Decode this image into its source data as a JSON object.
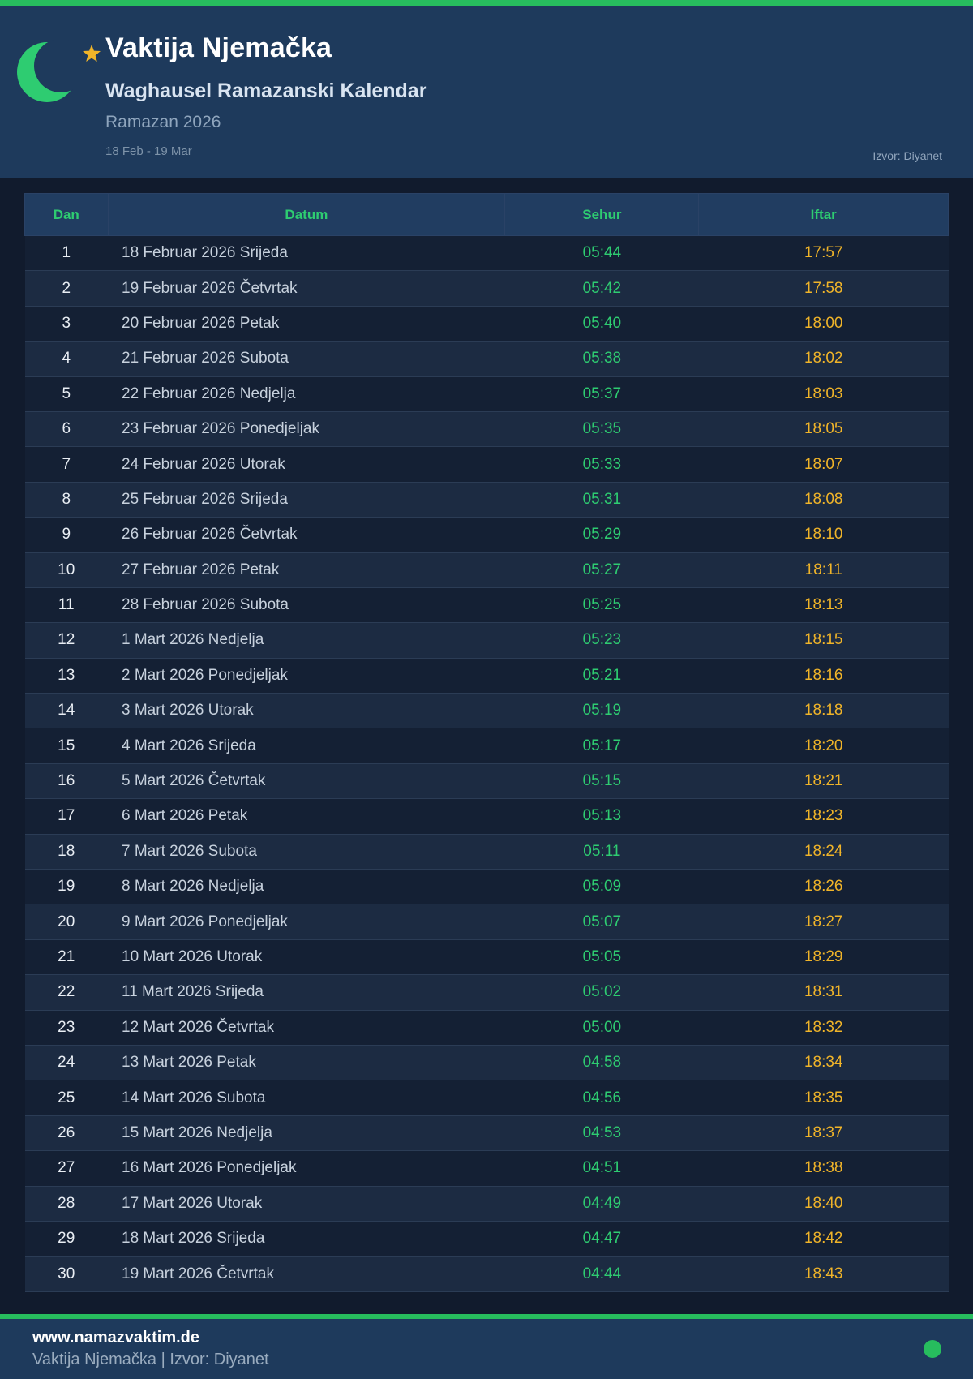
{
  "header": {
    "title": "Vaktija Njemačka",
    "subtitle": "Waghausel Ramazanski Kalendar",
    "period": "Ramazan 2026",
    "date_range": "18 Feb - 19 Mar",
    "source": "Izvor: Diyanet"
  },
  "table": {
    "columns": [
      "Dan",
      "Datum",
      "Sehur",
      "Iftar"
    ],
    "rows": [
      {
        "dan": "1",
        "datum": "18 Februar 2026 Srijeda",
        "sehur": "05:44",
        "iftar": "17:57"
      },
      {
        "dan": "2",
        "datum": "19 Februar 2026 Četvrtak",
        "sehur": "05:42",
        "iftar": "17:58"
      },
      {
        "dan": "3",
        "datum": "20 Februar 2026 Petak",
        "sehur": "05:40",
        "iftar": "18:00"
      },
      {
        "dan": "4",
        "datum": "21 Februar 2026 Subota",
        "sehur": "05:38",
        "iftar": "18:02"
      },
      {
        "dan": "5",
        "datum": "22 Februar 2026 Nedjelja",
        "sehur": "05:37",
        "iftar": "18:03"
      },
      {
        "dan": "6",
        "datum": "23 Februar 2026 Ponedjeljak",
        "sehur": "05:35",
        "iftar": "18:05"
      },
      {
        "dan": "7",
        "datum": "24 Februar 2026 Utorak",
        "sehur": "05:33",
        "iftar": "18:07"
      },
      {
        "dan": "8",
        "datum": "25 Februar 2026 Srijeda",
        "sehur": "05:31",
        "iftar": "18:08"
      },
      {
        "dan": "9",
        "datum": "26 Februar 2026 Četvrtak",
        "sehur": "05:29",
        "iftar": "18:10"
      },
      {
        "dan": "10",
        "datum": "27 Februar 2026 Petak",
        "sehur": "05:27",
        "iftar": "18:11"
      },
      {
        "dan": "11",
        "datum": "28 Februar 2026 Subota",
        "sehur": "05:25",
        "iftar": "18:13"
      },
      {
        "dan": "12",
        "datum": "1 Mart 2026 Nedjelja",
        "sehur": "05:23",
        "iftar": "18:15"
      },
      {
        "dan": "13",
        "datum": "2 Mart 2026 Ponedjeljak",
        "sehur": "05:21",
        "iftar": "18:16"
      },
      {
        "dan": "14",
        "datum": "3 Mart 2026 Utorak",
        "sehur": "05:19",
        "iftar": "18:18"
      },
      {
        "dan": "15",
        "datum": "4 Mart 2026 Srijeda",
        "sehur": "05:17",
        "iftar": "18:20"
      },
      {
        "dan": "16",
        "datum": "5 Mart 2026 Četvrtak",
        "sehur": "05:15",
        "iftar": "18:21"
      },
      {
        "dan": "17",
        "datum": "6 Mart 2026 Petak",
        "sehur": "05:13",
        "iftar": "18:23"
      },
      {
        "dan": "18",
        "datum": "7 Mart 2026 Subota",
        "sehur": "05:11",
        "iftar": "18:24"
      },
      {
        "dan": "19",
        "datum": "8 Mart 2026 Nedjelja",
        "sehur": "05:09",
        "iftar": "18:26"
      },
      {
        "dan": "20",
        "datum": "9 Mart 2026 Ponedjeljak",
        "sehur": "05:07",
        "iftar": "18:27"
      },
      {
        "dan": "21",
        "datum": "10 Mart 2026 Utorak",
        "sehur": "05:05",
        "iftar": "18:29"
      },
      {
        "dan": "22",
        "datum": "11 Mart 2026 Srijeda",
        "sehur": "05:02",
        "iftar": "18:31"
      },
      {
        "dan": "23",
        "datum": "12 Mart 2026 Četvrtak",
        "sehur": "05:00",
        "iftar": "18:32"
      },
      {
        "dan": "24",
        "datum": "13 Mart 2026 Petak",
        "sehur": "04:58",
        "iftar": "18:34"
      },
      {
        "dan": "25",
        "datum": "14 Mart 2026 Subota",
        "sehur": "04:56",
        "iftar": "18:35"
      },
      {
        "dan": "26",
        "datum": "15 Mart 2026 Nedjelja",
        "sehur": "04:53",
        "iftar": "18:37"
      },
      {
        "dan": "27",
        "datum": "16 Mart 2026 Ponedjeljak",
        "sehur": "04:51",
        "iftar": "18:38"
      },
      {
        "dan": "28",
        "datum": "17 Mart 2026 Utorak",
        "sehur": "04:49",
        "iftar": "18:40"
      },
      {
        "dan": "29",
        "datum": "18 Mart 2026 Srijeda",
        "sehur": "04:47",
        "iftar": "18:42"
      },
      {
        "dan": "30",
        "datum": "19 Mart 2026 Četvrtak",
        "sehur": "04:44",
        "iftar": "18:43"
      }
    ]
  },
  "footer": {
    "website": "www.namazvaktim.de",
    "tagline": "Vaktija Njemačka | Izvor: Diyanet"
  },
  "icons": {
    "logo_moon": "crescent-moon-icon",
    "logo_star": "star-icon",
    "footer_dot": "green-dot-icon"
  },
  "colors": {
    "accent_green": "#27bd5e",
    "text_green": "#2ecc71",
    "text_amber": "#f0b429",
    "band_bg": "#1e3a5c",
    "thead_bg": "#213d61",
    "page_bg": "#111b2d",
    "row_odd": "#142034",
    "row_even": "#1c2b42"
  }
}
